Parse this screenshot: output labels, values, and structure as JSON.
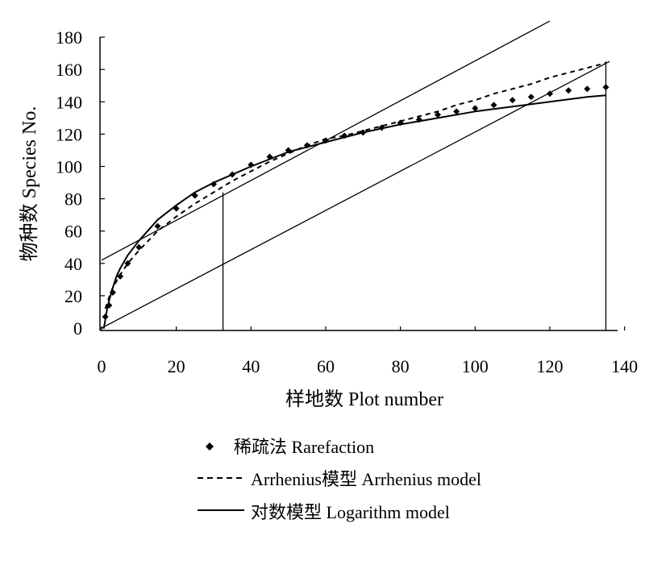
{
  "chart_data": {
    "type": "line",
    "xlabel": "样地数 Plot number",
    "ylabel": "物种数 Species No.",
    "xlim": [
      0,
      140
    ],
    "ylim": [
      0,
      180
    ],
    "x_ticks": [
      "0",
      "20",
      "40",
      "60",
      "80",
      "100",
      "120",
      "140"
    ],
    "y_ticks": [
      "0",
      "20",
      "40",
      "60",
      "80",
      "100",
      "120",
      "140",
      "160",
      "180"
    ],
    "grid": false,
    "legend_position": "bottom",
    "series": [
      {
        "name": "稀疏法 Rarefaction",
        "style": "diamond-markers",
        "x": [
          1,
          2,
          3,
          5,
          7,
          10,
          15,
          20,
          25,
          30,
          35,
          40,
          45,
          50,
          55,
          60,
          65,
          70,
          75,
          80,
          85,
          90,
          95,
          100,
          105,
          110,
          115,
          120,
          125,
          130,
          135
        ],
        "values": [
          7,
          14,
          22,
          32,
          40,
          50,
          63,
          74,
          82,
          89,
          95,
          101,
          106,
          110,
          113,
          116,
          119,
          121,
          124,
          127,
          129,
          132,
          134,
          136,
          138,
          141,
          143,
          145,
          147,
          148,
          149
        ]
      },
      {
        "name": "Arrhenius模型 Arrhenius model",
        "style": "dashed",
        "x": [
          1,
          2,
          3,
          5,
          7,
          10,
          15,
          20,
          25,
          30,
          35,
          40,
          45,
          50,
          55,
          60,
          65,
          70,
          75,
          80,
          85,
          90,
          95,
          100,
          105,
          110,
          115,
          120,
          125,
          130,
          135
        ],
        "values": [
          12,
          19,
          25,
          33,
          40,
          48,
          60,
          69,
          77,
          84,
          91,
          97,
          103,
          108,
          113,
          117,
          119,
          122,
          125,
          128,
          131,
          134,
          138,
          141,
          145,
          148,
          151,
          155,
          158,
          161,
          164
        ]
      },
      {
        "name": "对数模型 Logarithm model",
        "style": "solid",
        "x": [
          0.6,
          1,
          1.5,
          2,
          3,
          4,
          5,
          7,
          10,
          15,
          20,
          25,
          30,
          40,
          50,
          60,
          70,
          80,
          90,
          100,
          110,
          120,
          130,
          135
        ],
        "values": [
          0,
          5,
          12,
          17,
          25,
          32,
          37,
          45,
          54,
          67,
          76,
          84,
          90,
          100,
          109,
          115,
          121,
          126,
          130,
          134,
          137,
          140,
          143,
          144
        ]
      }
    ],
    "reference_lines": [
      {
        "from": [
          0,
          42
        ],
        "to": [
          120,
          190
        ]
      },
      {
        "from": [
          0,
          0
        ],
        "to": [
          136,
          165
        ]
      }
    ],
    "vertical_lines": [
      {
        "x": 32.5,
        "y_top": 84
      },
      {
        "x": 135,
        "y_top": 165
      }
    ],
    "colors": {
      "line": "#000000",
      "background": "#ffffff"
    }
  }
}
